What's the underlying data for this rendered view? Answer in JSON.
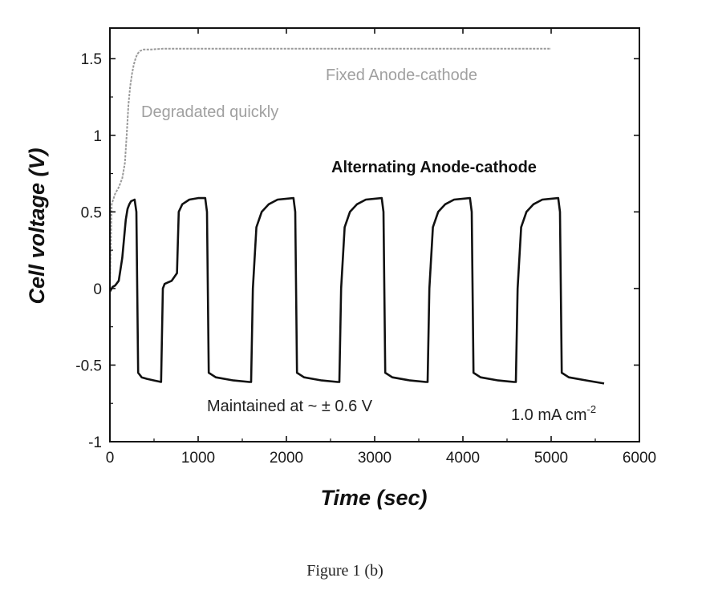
{
  "chart_data": {
    "type": "line",
    "xlabel": "Time (sec)",
    "ylabel": "Cell voltage (V)",
    "xlim": [
      0,
      6000
    ],
    "ylim": [
      -1,
      1.7
    ],
    "x_ticks": [
      0,
      1000,
      2000,
      3000,
      4000,
      5000,
      6000
    ],
    "x_tick_labels": [
      "0",
      "1000",
      "2000",
      "3000",
      "4000",
      "5000",
      "6000"
    ],
    "y_ticks": [
      -1,
      -0.5,
      0,
      0.5,
      1,
      1.5
    ],
    "y_tick_labels": [
      "-1",
      "-0.5",
      "0",
      "0.5",
      "1",
      "1.5"
    ],
    "grid": false,
    "series": [
      {
        "name": "Fixed Anode-cathode",
        "color": "#9a9a9a",
        "x": [
          0,
          20,
          60,
          100,
          140,
          170,
          190,
          210,
          230,
          250,
          270,
          290,
          310,
          340,
          380,
          450,
          600,
          1000,
          2000,
          3000,
          4000,
          5000
        ],
        "y": [
          0.0,
          0.55,
          0.62,
          0.66,
          0.72,
          0.82,
          1.0,
          1.2,
          1.32,
          1.4,
          1.46,
          1.5,
          1.53,
          1.55,
          1.56,
          1.56,
          1.565,
          1.565,
          1.565,
          1.565,
          1.565,
          1.565
        ]
      },
      {
        "name": "Alternating Anode-cathode",
        "color": "#111111",
        "x": [
          0,
          30,
          60,
          100,
          140,
          180,
          200,
          220,
          240,
          280,
          300,
          320,
          360,
          420,
          500,
          580,
          600,
          620,
          660,
          700,
          760,
          780,
          820,
          900,
          1000,
          1080,
          1100,
          1120,
          1200,
          1400,
          1580,
          1600,
          1620,
          1660,
          1720,
          1800,
          1900,
          2080,
          2100,
          2120,
          2200,
          2400,
          2580,
          2600,
          2620,
          2660,
          2720,
          2800,
          2900,
          3080,
          3100,
          3120,
          3200,
          3400,
          3580,
          3600,
          3620,
          3660,
          3720,
          3800,
          3900,
          4080,
          4100,
          4120,
          4200,
          4400,
          4580,
          4600,
          4620,
          4660,
          4720,
          4800,
          4900,
          5080,
          5100,
          5120,
          5200,
          5400,
          5600
        ],
        "y": [
          -0.02,
          0.01,
          0.02,
          0.05,
          0.2,
          0.45,
          0.52,
          0.55,
          0.57,
          0.58,
          0.5,
          -0.55,
          -0.58,
          -0.59,
          -0.6,
          -0.61,
          0.0,
          0.03,
          0.04,
          0.05,
          0.1,
          0.5,
          0.55,
          0.58,
          0.59,
          0.59,
          0.5,
          -0.55,
          -0.58,
          -0.6,
          -0.61,
          -0.61,
          0.0,
          0.4,
          0.5,
          0.55,
          0.58,
          0.59,
          0.5,
          -0.55,
          -0.58,
          -0.6,
          -0.61,
          -0.61,
          0.0,
          0.4,
          0.5,
          0.55,
          0.58,
          0.59,
          0.5,
          -0.55,
          -0.58,
          -0.6,
          -0.61,
          -0.61,
          0.0,
          0.4,
          0.5,
          0.55,
          0.58,
          0.59,
          0.5,
          -0.55,
          -0.58,
          -0.6,
          -0.61,
          -0.61,
          0.0,
          0.4,
          0.5,
          0.55,
          0.58,
          0.59,
          0.5,
          -0.55,
          -0.58,
          -0.6,
          -0.62
        ]
      }
    ],
    "annotations": {
      "fixed": "Fixed  Anode-cathode",
      "degraded": "Degradated quickly",
      "alternating": "Alternating Anode-cathode",
      "maintained": "Maintained at ~ ± 0.6 V",
      "current_main": "1.0 mA cm",
      "current_exp": "-2"
    }
  },
  "caption": "Figure 1 (b)"
}
